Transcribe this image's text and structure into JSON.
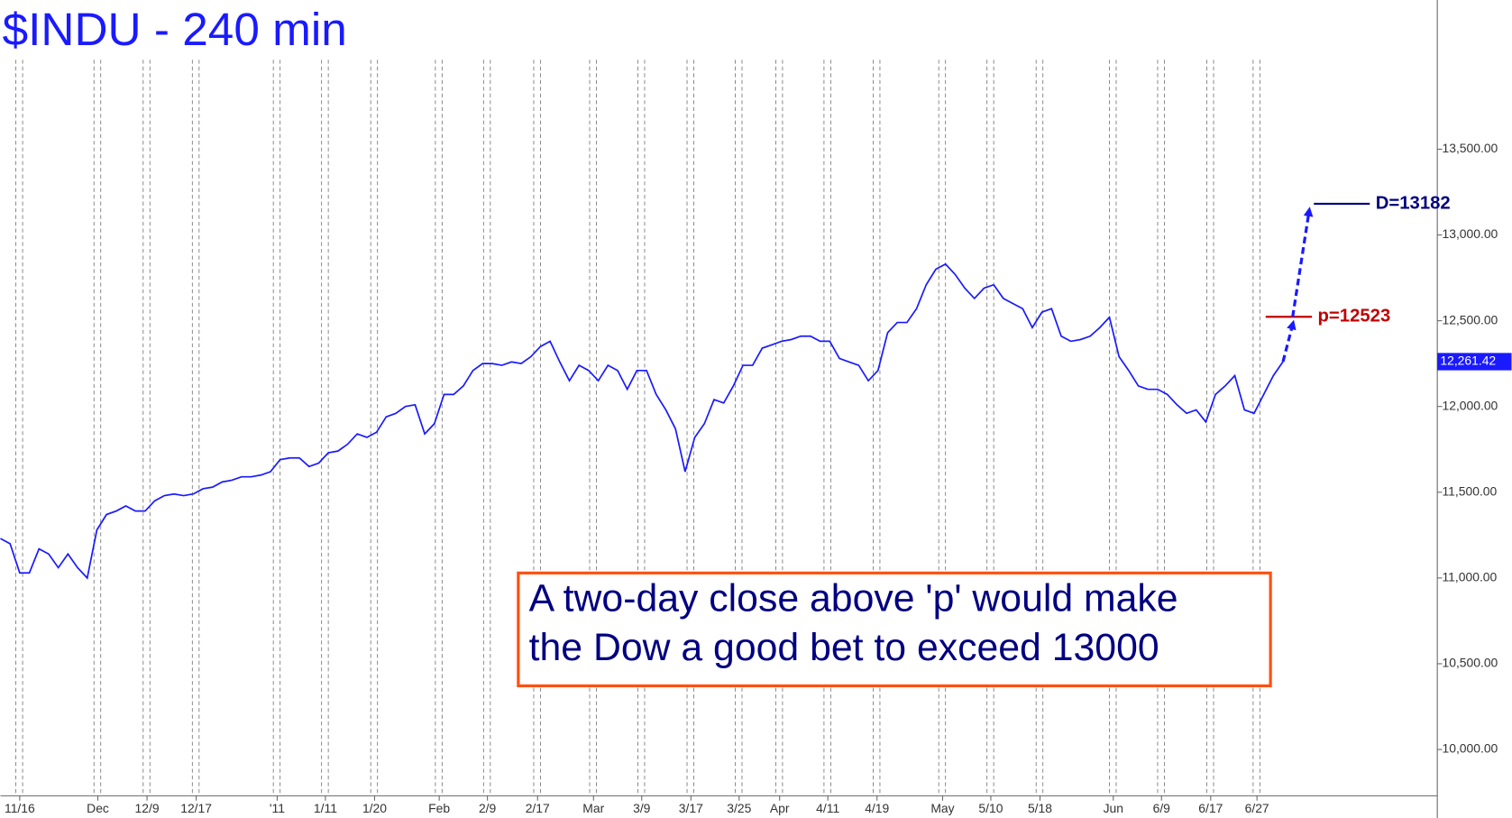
{
  "chart_data": {
    "type": "line",
    "title": "$INDU - 240 min",
    "series": [
      {
        "name": "$INDU",
        "color": "#1a1aff",
        "values": [
          11230,
          11200,
          11030,
          11030,
          11170,
          11140,
          11060,
          11140,
          11060,
          11000,
          11280,
          11370,
          11390,
          11420,
          11390,
          11390,
          11450,
          11480,
          11490,
          11480,
          11490,
          11520,
          11530,
          11560,
          11570,
          11590,
          11590,
          11600,
          11620,
          11690,
          11700,
          11700,
          11650,
          11670,
          11730,
          11740,
          11780,
          11840,
          11820,
          11850,
          11940,
          11960,
          12000,
          12010,
          11840,
          11900,
          12070,
          12070,
          12120,
          12210,
          12250,
          12250,
          12240,
          12260,
          12250,
          12290,
          12350,
          12380,
          12260,
          12150,
          12240,
          12210,
          12150,
          12240,
          12210,
          12100,
          12210,
          12210,
          12070,
          11980,
          11870,
          11620,
          11820,
          11900,
          12040,
          12020,
          12120,
          12240,
          12240,
          12340,
          12360,
          12380,
          12390,
          12410,
          12410,
          12380,
          12380,
          12280,
          12260,
          12240,
          12150,
          12210,
          12430,
          12490,
          12490,
          12570,
          12710,
          12800,
          12830,
          12770,
          12690,
          12630,
          12690,
          12710,
          12630,
          12600,
          12570,
          12460,
          12550,
          12570,
          12410,
          12380,
          12390,
          12410,
          12460,
          12520,
          12290,
          12210,
          12120,
          12100,
          12100,
          12070,
          12010,
          11960,
          11980,
          11910,
          12070,
          12120,
          12180,
          11980,
          11960,
          12070,
          12180,
          12261.42
        ]
      }
    ],
    "last_price": {
      "value": 12261.42,
      "label": "12,261.42"
    },
    "xlim": [
      0,
      149
    ],
    "xticks": [
      {
        "value": 2,
        "label": "11/16"
      },
      {
        "value": 10.1,
        "label": "Dec"
      },
      {
        "value": 15.2,
        "label": "12/9"
      },
      {
        "value": 20.3,
        "label": "12/17"
      },
      {
        "value": 28.7,
        "label": "'11"
      },
      {
        "value": 33.7,
        "label": "1/11"
      },
      {
        "value": 38.8,
        "label": "1/20"
      },
      {
        "value": 45.5,
        "label": "Feb"
      },
      {
        "value": 50.5,
        "label": "2/9"
      },
      {
        "value": 55.7,
        "label": "2/17"
      },
      {
        "value": 61.5,
        "label": "Mar"
      },
      {
        "value": 66.5,
        "label": "3/9"
      },
      {
        "value": 71.6,
        "label": "3/17"
      },
      {
        "value": 76.6,
        "label": "3/25"
      },
      {
        "value": 80.8,
        "label": "Apr"
      },
      {
        "value": 85.8,
        "label": "4/11"
      },
      {
        "value": 90.9,
        "label": "4/19"
      },
      {
        "value": 97.7,
        "label": "May"
      },
      {
        "value": 102.7,
        "label": "5/10"
      },
      {
        "value": 107.8,
        "label": "5/18"
      },
      {
        "value": 115.4,
        "label": "Jun"
      },
      {
        "value": 120.4,
        "label": "6/9"
      },
      {
        "value": 125.5,
        "label": "6/17"
      },
      {
        "value": 130.3,
        "label": "6/27"
      }
    ],
    "ylim": [
      9730,
      14370
    ],
    "yticks": [
      {
        "value": 10000,
        "label": "10,000.00"
      },
      {
        "value": 10500,
        "label": "10,500.00"
      },
      {
        "value": 11000,
        "label": "11,000.00"
      },
      {
        "value": 11500,
        "label": "11,500.00"
      },
      {
        "value": 12000,
        "label": "12,000.00"
      },
      {
        "value": 12500,
        "label": "12,500.00"
      },
      {
        "value": 13000,
        "label": "13,000.00"
      },
      {
        "value": 13500,
        "label": "13,500.00"
      }
    ],
    "levels": [
      {
        "label": "p=12523",
        "value": 12523,
        "color": "#c00000"
      },
      {
        "label": "D=13182",
        "value": 13182,
        "color": "#000080"
      }
    ],
    "annotation": [
      "A two-day close above 'p' would make",
      "the Dow a good bet to exceed 13000"
    ]
  }
}
